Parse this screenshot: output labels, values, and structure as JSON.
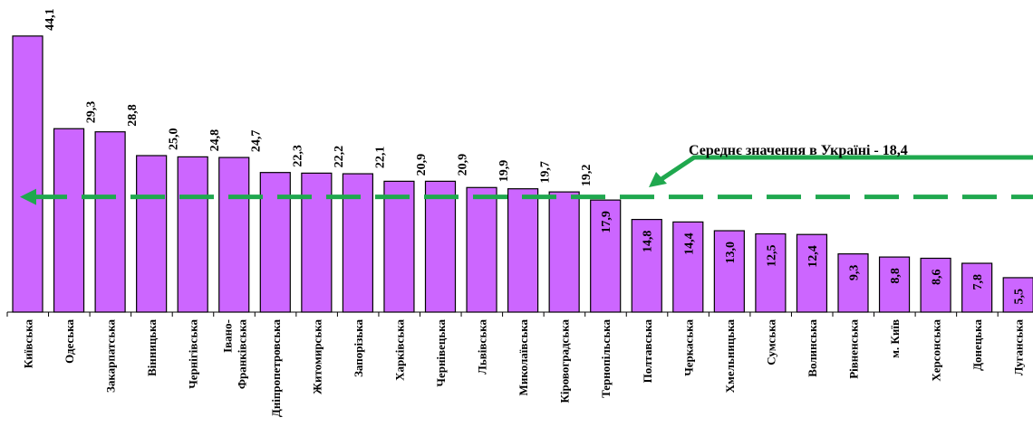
{
  "chart_data": {
    "type": "bar",
    "categories": [
      "Київська",
      "Одеська",
      "Закарпатська",
      "Вінницька",
      "Чернігівська",
      "Івано-Франківська",
      "Дніпропетровська",
      "Житомирська",
      "Запорізька",
      "Харківська",
      "Чернівецька",
      "Львівська",
      "Миколаївська",
      "Кіровоградська",
      "Тернопільська",
      "Полтавська",
      "Черкаська",
      "Хмельницька",
      "Сумська",
      "Волинська",
      "Рівненська",
      "м. Київ",
      "Херсонська",
      "Донецька",
      "Луганська"
    ],
    "values": [
      44.1,
      29.3,
      28.8,
      25.0,
      24.8,
      24.7,
      22.3,
      22.2,
      22.1,
      20.9,
      20.9,
      19.9,
      19.7,
      19.2,
      17.9,
      14.8,
      14.4,
      13.0,
      12.5,
      12.4,
      9.3,
      8.8,
      8.6,
      7.8,
      5.5
    ],
    "value_labels": [
      "44,1",
      "29,3",
      "28,8",
      "25,0",
      "24,8",
      "24,7",
      "22,3",
      "22,2",
      "22,1",
      "20,9",
      "20,9",
      "19,9",
      "19,7",
      "19,2",
      "17,9",
      "14,8",
      "14,4",
      "13,0",
      "12,5",
      "12,4",
      "9,3",
      "8,8",
      "8,6",
      "7,8",
      "5,5"
    ],
    "average": 18.4,
    "average_label": "Середнє значення в Україні - 18,4",
    "ylim": [
      0,
      48
    ],
    "grid": false,
    "bar_color": "#cc66ff",
    "average_line_color": "#1fa84e"
  }
}
